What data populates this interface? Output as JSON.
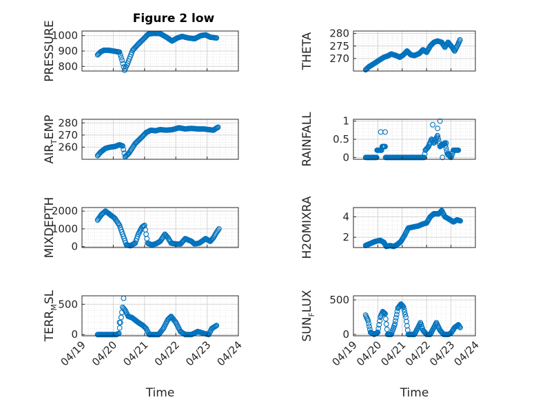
{
  "figure": {
    "title": "Figure 2 low",
    "background": "#ffffff"
  },
  "style": {
    "marker_color": "#0072BD",
    "axis_color": "#262626",
    "grid_color": "#d4d4d4"
  },
  "chart_data": [
    {
      "type": "scatter",
      "id": "pressure",
      "title": "Figure 2 low",
      "ylabel_parts": [
        "PRESSURE"
      ],
      "xlabel": "",
      "xlim": [
        0,
        5
      ],
      "ylim": [
        770,
        1030
      ],
      "yticks": [
        800,
        900,
        1000
      ],
      "ytick_labels": [
        "800",
        "900",
        "1000"
      ],
      "x_tick_labels": [
        "04/19",
        "04/20",
        "04/21",
        "04/22",
        "04/23",
        "04/24"
      ],
      "show_x_tick_labels": false,
      "grid": true,
      "knots": [
        [
          0.5,
          875
        ],
        [
          0.6,
          895
        ],
        [
          0.7,
          905
        ],
        [
          0.85,
          905
        ],
        [
          1.0,
          900
        ],
        [
          1.2,
          893
        ],
        [
          1.28,
          840
        ],
        [
          1.36,
          775
        ],
        [
          1.46,
          820
        ],
        [
          1.62,
          905
        ],
        [
          1.8,
          945
        ],
        [
          2.0,
          985
        ],
        [
          2.12,
          1010
        ],
        [
          2.3,
          1015
        ],
        [
          2.5,
          1013
        ],
        [
          2.7,
          990
        ],
        [
          2.88,
          965
        ],
        [
          3.05,
          985
        ],
        [
          3.2,
          995
        ],
        [
          3.4,
          985
        ],
        [
          3.6,
          980
        ],
        [
          3.8,
          1000
        ],
        [
          3.95,
          1005
        ],
        [
          4.1,
          990
        ],
        [
          4.3,
          985
        ]
      ]
    },
    {
      "type": "scatter",
      "id": "theta",
      "ylabel_parts": [
        "THETA"
      ],
      "xlabel": "",
      "xlim": [
        0,
        5
      ],
      "ylim": [
        265,
        281
      ],
      "yticks": [
        270,
        275,
        280
      ],
      "ytick_labels": [
        "270",
        "275",
        "280"
      ],
      "x_tick_labels": [
        "04/19",
        "04/20",
        "04/21",
        "04/22",
        "04/23",
        "04/24"
      ],
      "show_x_tick_labels": false,
      "grid": true,
      "knots": [
        [
          0.5,
          265.5
        ],
        [
          0.65,
          266.8
        ],
        [
          0.85,
          268
        ],
        [
          1.05,
          269.3
        ],
        [
          1.25,
          270.5
        ],
        [
          1.4,
          271
        ],
        [
          1.55,
          271.8
        ],
        [
          1.75,
          271.2
        ],
        [
          1.9,
          270.5
        ],
        [
          2.05,
          271.5
        ],
        [
          2.2,
          273
        ],
        [
          2.35,
          271.5
        ],
        [
          2.5,
          271.2
        ],
        [
          2.7,
          272
        ],
        [
          2.85,
          273.5
        ],
        [
          3.0,
          272.5
        ],
        [
          3.15,
          275
        ],
        [
          3.3,
          276.5
        ],
        [
          3.45,
          277
        ],
        [
          3.62,
          276.5
        ],
        [
          3.75,
          274.5
        ],
        [
          3.88,
          276.5
        ],
        [
          4.05,
          274.5
        ],
        [
          4.15,
          273
        ],
        [
          4.28,
          275.5
        ],
        [
          4.37,
          277.5
        ]
      ]
    },
    {
      "type": "scatter",
      "id": "air_temp",
      "ylabel_parts": [
        "AIR",
        "T",
        "EMP"
      ],
      "xlabel": "",
      "xlim": [
        0,
        5
      ],
      "ylim": [
        250,
        283
      ],
      "yticks": [
        260,
        270,
        280
      ],
      "ytick_labels": [
        "260",
        "270",
        "280"
      ],
      "x_tick_labels": [
        "04/19",
        "04/20",
        "04/21",
        "04/22",
        "04/23",
        "04/24"
      ],
      "show_x_tick_labels": false,
      "grid": true,
      "knots": [
        [
          0.5,
          253
        ],
        [
          0.6,
          256
        ],
        [
          0.75,
          259
        ],
        [
          0.9,
          260
        ],
        [
          1.05,
          260.5
        ],
        [
          1.2,
          262
        ],
        [
          1.3,
          261
        ],
        [
          1.38,
          252
        ],
        [
          1.5,
          255
        ],
        [
          1.7,
          263
        ],
        [
          1.9,
          268
        ],
        [
          2.05,
          272
        ],
        [
          2.2,
          274
        ],
        [
          2.35,
          273.5
        ],
        [
          2.5,
          274.5
        ],
        [
          2.7,
          274
        ],
        [
          2.9,
          274.5
        ],
        [
          3.1,
          276
        ],
        [
          3.3,
          275
        ],
        [
          3.5,
          275.5
        ],
        [
          3.7,
          275
        ],
        [
          3.9,
          275
        ],
        [
          4.05,
          274.5
        ],
        [
          4.2,
          274
        ],
        [
          4.35,
          276.5
        ]
      ]
    },
    {
      "type": "scatter",
      "id": "rainfall",
      "ylabel_parts": [
        "RAINFALL"
      ],
      "xlabel": "",
      "xlim": [
        0,
        5
      ],
      "ylim": [
        -0.05,
        1.05
      ],
      "yticks": [
        0,
        0.5,
        1
      ],
      "ytick_labels": [
        "0",
        "0.5",
        "1"
      ],
      "x_tick_labels": [
        "04/19",
        "04/20",
        "04/21",
        "04/22",
        "04/23",
        "04/24"
      ],
      "show_x_tick_labels": false,
      "grid": true,
      "knots": [
        [
          0.5,
          0
        ],
        [
          0.95,
          0
        ],
        [
          0.97,
          0.2
        ],
        [
          1.15,
          0.2
        ],
        [
          1.18,
          0.3
        ],
        [
          1.3,
          0.3
        ],
        [
          1.32,
          0
        ],
        [
          2.9,
          0
        ],
        [
          2.95,
          0.2
        ],
        [
          3.08,
          0.3
        ],
        [
          3.2,
          0.5
        ],
        [
          3.3,
          0.4
        ],
        [
          3.45,
          0.6
        ],
        [
          3.55,
          0.3
        ],
        [
          3.75,
          0.4
        ],
        [
          3.85,
          0.1
        ],
        [
          4.0,
          0
        ],
        [
          4.1,
          0.2
        ],
        [
          4.3,
          0.2
        ]
      ],
      "extra_points": [
        [
          1.3,
          0.7
        ],
        [
          1.12,
          0.7
        ],
        [
          3.25,
          0.9
        ],
        [
          3.55,
          1.0
        ],
        [
          3.45,
          0.8
        ],
        [
          3.65,
          0
        ],
        [
          3.8,
          0.4
        ],
        [
          3.9,
          0.1
        ]
      ]
    },
    {
      "type": "scatter",
      "id": "mixdepth",
      "ylabel_parts": [
        "MIXDEPTH"
      ],
      "xlabel": "",
      "xlim": [
        0,
        5
      ],
      "ylim": [
        -50,
        2200
      ],
      "yticks": [
        0,
        1000,
        2000
      ],
      "ytick_labels": [
        "0",
        "1000",
        "2000"
      ],
      "x_tick_labels": [
        "04/19",
        "04/20",
        "04/21",
        "04/22",
        "04/23",
        "04/24"
      ],
      "show_x_tick_labels": false,
      "grid": true,
      "knots": [
        [
          0.5,
          1500
        ],
        [
          0.62,
          1800
        ],
        [
          0.75,
          2000
        ],
        [
          0.9,
          1800
        ],
        [
          1.05,
          1600
        ],
        [
          1.2,
          1200
        ],
        [
          1.3,
          700
        ],
        [
          1.42,
          100
        ],
        [
          1.55,
          50
        ],
        [
          1.7,
          200
        ],
        [
          1.8,
          700
        ],
        [
          1.92,
          1100
        ],
        [
          2.0,
          1200
        ],
        [
          2.1,
          200
        ],
        [
          2.22,
          100
        ],
        [
          2.35,
          150
        ],
        [
          2.5,
          300
        ],
        [
          2.65,
          700
        ],
        [
          2.75,
          500
        ],
        [
          2.85,
          200
        ],
        [
          3.0,
          150
        ],
        [
          3.15,
          150
        ],
        [
          3.3,
          450
        ],
        [
          3.5,
          300
        ],
        [
          3.6,
          150
        ],
        [
          3.75,
          200
        ],
        [
          3.95,
          450
        ],
        [
          4.1,
          300
        ],
        [
          4.2,
          500
        ],
        [
          4.3,
          800
        ],
        [
          4.38,
          1000
        ]
      ]
    },
    {
      "type": "scatter",
      "id": "h2omixra",
      "ylabel_parts": [
        "H2OMIXRA"
      ],
      "xlabel": "",
      "xlim": [
        0,
        5
      ],
      "ylim": [
        1,
        4.9
      ],
      "yticks": [
        2,
        4
      ],
      "ytick_labels": [
        "2",
        "4"
      ],
      "x_tick_labels": [
        "04/19",
        "04/20",
        "04/21",
        "04/22",
        "04/23",
        "04/24"
      ],
      "show_x_tick_labels": false,
      "grid": true,
      "knots": [
        [
          0.5,
          1.2
        ],
        [
          0.7,
          1.4
        ],
        [
          0.9,
          1.6
        ],
        [
          1.1,
          1.7
        ],
        [
          1.25,
          1.5
        ],
        [
          1.35,
          1.1
        ],
        [
          1.5,
          1.2
        ],
        [
          1.65,
          1.1
        ],
        [
          1.8,
          1.3
        ],
        [
          1.95,
          1.6
        ],
        [
          2.1,
          2.2
        ],
        [
          2.25,
          2.9
        ],
        [
          2.45,
          3.0
        ],
        [
          2.65,
          3.1
        ],
        [
          2.85,
          3.3
        ],
        [
          3.0,
          3.4
        ],
        [
          3.15,
          4.0
        ],
        [
          3.3,
          4.3
        ],
        [
          3.5,
          4.3
        ],
        [
          3.62,
          4.6
        ],
        [
          3.75,
          4.0
        ],
        [
          3.9,
          3.8
        ],
        [
          4.1,
          3.5
        ],
        [
          4.25,
          3.7
        ],
        [
          4.38,
          3.6
        ]
      ]
    },
    {
      "type": "scatter",
      "id": "terr_msl",
      "ylabel_parts": [
        "TERR",
        "M",
        "SL"
      ],
      "xlabel": "Time",
      "xlim": [
        0,
        5
      ],
      "ylim": [
        -20,
        640
      ],
      "yticks": [
        0,
        500
      ],
      "ytick_labels": [
        "0",
        "500"
      ],
      "x_tick_labels": [
        "04/19",
        "04/20",
        "04/21",
        "04/22",
        "04/23",
        "04/24"
      ],
      "show_x_tick_labels": true,
      "grid": true,
      "knots": [
        [
          0.5,
          0
        ],
        [
          0.9,
          0
        ],
        [
          1.1,
          0
        ],
        [
          1.18,
          20
        ],
        [
          1.23,
          200
        ],
        [
          1.3,
          450
        ],
        [
          1.38,
          400
        ],
        [
          1.48,
          300
        ],
        [
          1.6,
          280
        ],
        [
          1.8,
          200
        ],
        [
          1.95,
          150
        ],
        [
          2.05,
          100
        ],
        [
          2.15,
          0
        ],
        [
          2.3,
          0
        ],
        [
          2.45,
          0
        ],
        [
          2.6,
          100
        ],
        [
          2.75,
          250
        ],
        [
          2.85,
          300
        ],
        [
          3.0,
          200
        ],
        [
          3.15,
          50
        ],
        [
          3.3,
          0
        ],
        [
          3.5,
          0
        ],
        [
          3.7,
          50
        ],
        [
          3.9,
          20
        ],
        [
          4.05,
          0
        ],
        [
          4.15,
          100
        ],
        [
          4.3,
          150
        ]
      ],
      "extra_points": [
        [
          1.33,
          600
        ],
        [
          1.2,
          200
        ]
      ]
    },
    {
      "type": "scatter",
      "id": "sun_flux",
      "ylabel_parts": [
        "SUN",
        "F",
        "LUX"
      ],
      "xlabel": "Time",
      "xlim": [
        0,
        5
      ],
      "ylim": [
        -20,
        560
      ],
      "yticks": [
        0,
        500
      ],
      "ytick_labels": [
        "0",
        "500"
      ],
      "x_tick_labels": [
        "04/19",
        "04/20",
        "04/21",
        "04/22",
        "04/23",
        "04/24"
      ],
      "show_x_tick_labels": true,
      "grid": true,
      "knots": [
        [
          0.5,
          280
        ],
        [
          0.6,
          200
        ],
        [
          0.7,
          30
        ],
        [
          0.85,
          0
        ],
        [
          1.0,
          30
        ],
        [
          1.1,
          250
        ],
        [
          1.2,
          330
        ],
        [
          1.3,
          300
        ],
        [
          1.4,
          0
        ],
        [
          1.55,
          0
        ],
        [
          1.7,
          150
        ],
        [
          1.82,
          380
        ],
        [
          1.95,
          440
        ],
        [
          2.05,
          400
        ],
        [
          2.15,
          250
        ],
        [
          2.25,
          0
        ],
        [
          2.5,
          0
        ],
        [
          2.65,
          100
        ],
        [
          2.75,
          170
        ],
        [
          2.85,
          60
        ],
        [
          3.0,
          0
        ],
        [
          3.15,
          0
        ],
        [
          3.3,
          100
        ],
        [
          3.4,
          170
        ],
        [
          3.55,
          60
        ],
        [
          3.7,
          0
        ],
        [
          3.9,
          0
        ],
        [
          4.0,
          20
        ],
        [
          4.15,
          100
        ],
        [
          4.3,
          140
        ],
        [
          4.38,
          100
        ]
      ]
    }
  ]
}
